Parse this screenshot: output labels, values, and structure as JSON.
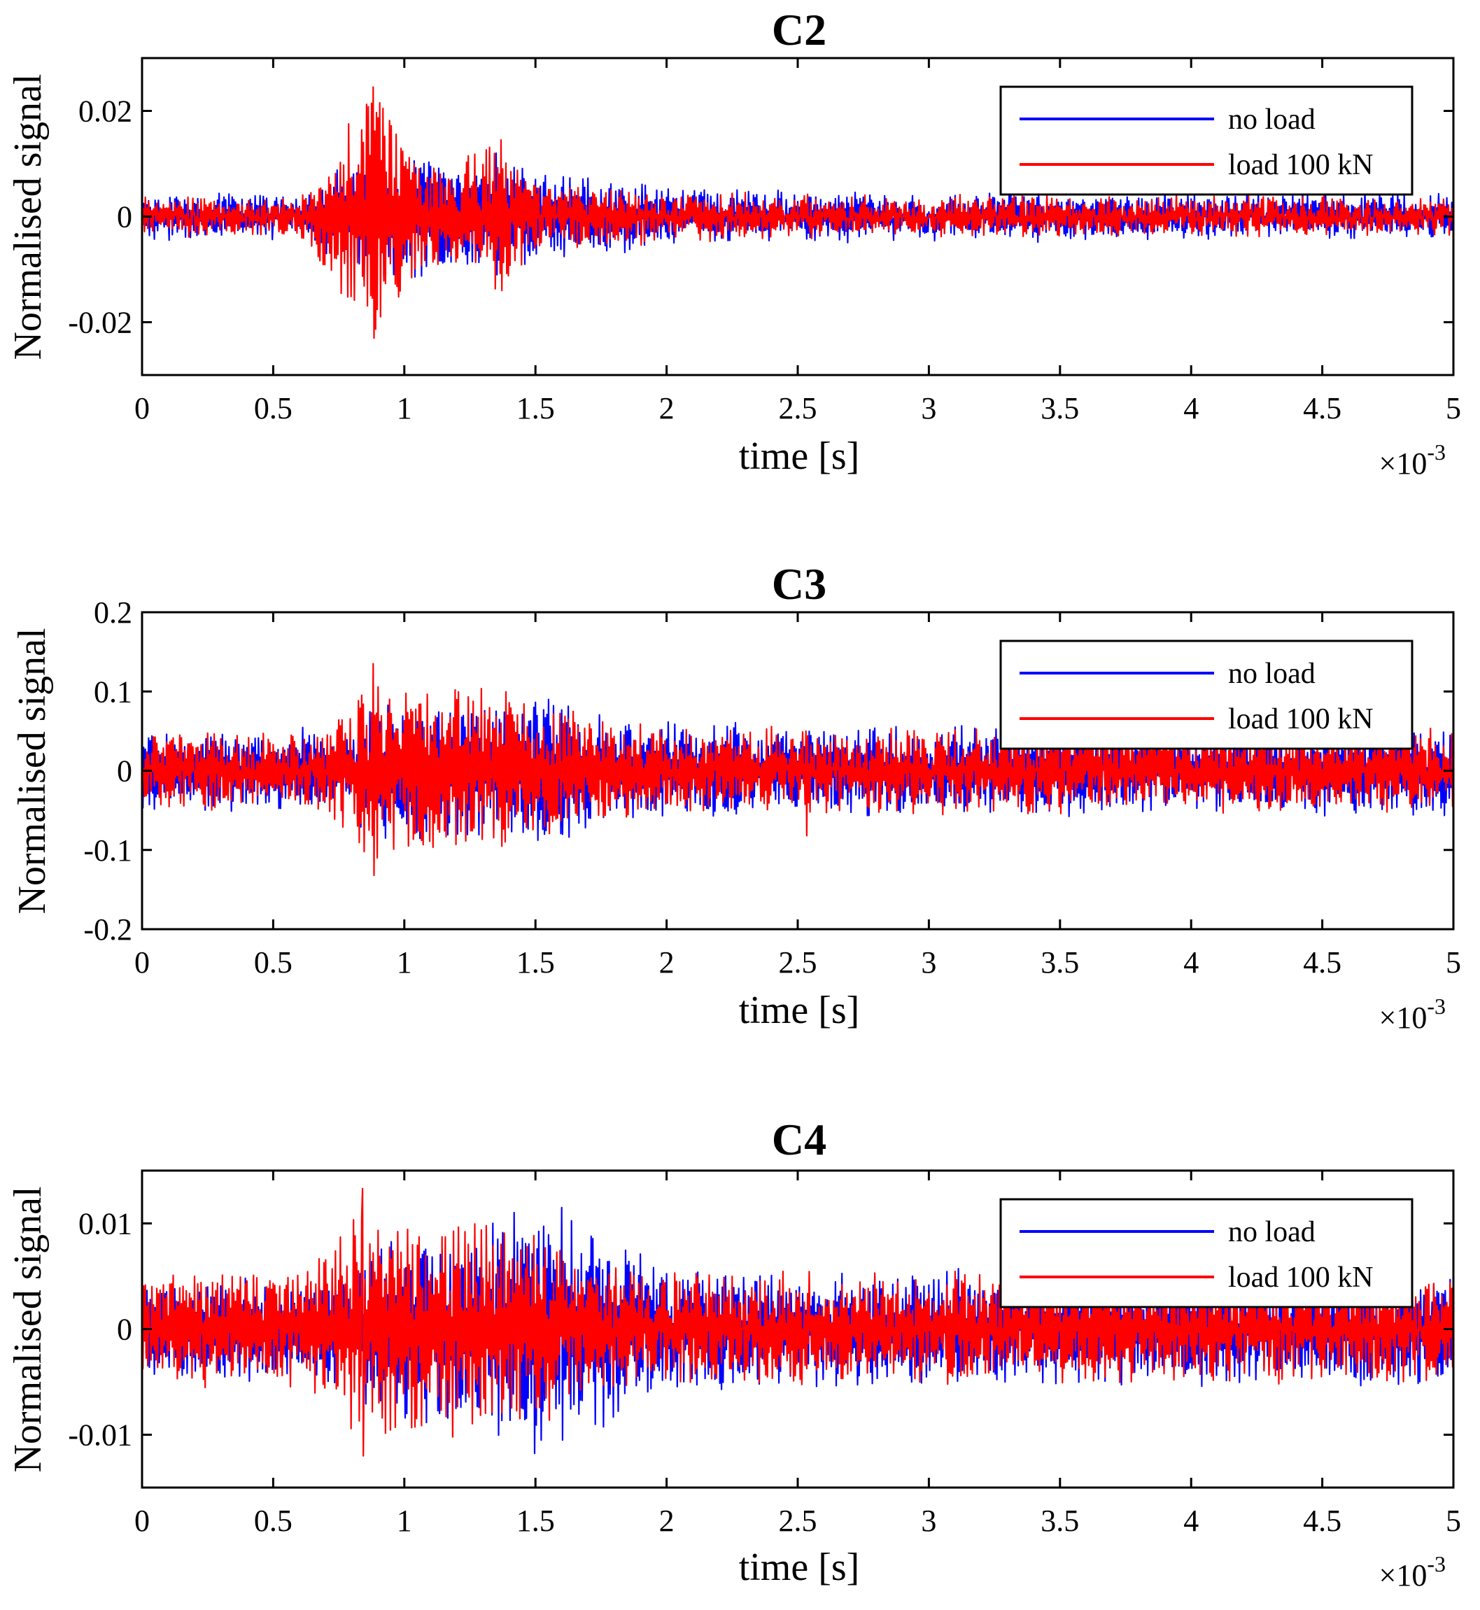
{
  "chart_data": [
    {
      "type": "line",
      "title": "C2",
      "xlabel": "time [s]",
      "ylabel": "Normalised signal",
      "x_exponent_label": "×10",
      "x_exponent_power": "-3",
      "xlim": [
        0,
        5
      ],
      "ylim": [
        -0.03,
        0.03
      ],
      "xticks": [
        0,
        0.5,
        1,
        1.5,
        2,
        2.5,
        3,
        3.5,
        4,
        4.5,
        5
      ],
      "xtick_labels": [
        "0",
        "0.5",
        "1",
        "1.5",
        "2",
        "2.5",
        "3",
        "3.5",
        "4",
        "4.5",
        "5"
      ],
      "yticks": [
        -0.02,
        0,
        0.02
      ],
      "ytick_labels": [
        "-0.02",
        "0",
        "0.02"
      ],
      "legend_position": "top-right",
      "series": [
        {
          "name": "no load",
          "color": "#0000ff",
          "noise": 0.0028,
          "envelope": [
            [
              0,
              0.0035
            ],
            [
              0.6,
              0.0035
            ],
            [
              0.75,
              0.009
            ],
            [
              0.85,
              0.013
            ],
            [
              1.0,
              0.012
            ],
            [
              1.2,
              0.009
            ],
            [
              1.4,
              0.009
            ],
            [
              1.6,
              0.007
            ],
            [
              2.0,
              0.005
            ],
            [
              2.5,
              0.004
            ],
            [
              3.0,
              0.0035
            ],
            [
              5.0,
              0.0035
            ]
          ],
          "peaks": [
            {
              "x": 1.35,
              "min": -0.011,
              "max": 0.012
            }
          ]
        },
        {
          "name": "load 100 kN",
          "color": "#ff0000",
          "noise": 0.0022,
          "envelope": [
            [
              0,
              0.003
            ],
            [
              0.6,
              0.003
            ],
            [
              0.7,
              0.01
            ],
            [
              0.87,
              0.024
            ],
            [
              0.95,
              0.02
            ],
            [
              1.0,
              0.015
            ],
            [
              1.15,
              0.008
            ],
            [
              1.35,
              0.014
            ],
            [
              1.5,
              0.006
            ],
            [
              2.0,
              0.004
            ],
            [
              2.5,
              0.0035
            ],
            [
              5.0,
              0.003
            ]
          ],
          "peaks": [
            {
              "x": 0.88,
              "min": -0.023,
              "max": 0.0245
            },
            {
              "x": 1.37,
              "min": -0.014,
              "max": 0.0145
            }
          ]
        }
      ]
    },
    {
      "type": "line",
      "title": "C3",
      "xlabel": "time [s]",
      "ylabel": "Normalised signal",
      "x_exponent_label": "×10",
      "x_exponent_power": "-3",
      "xlim": [
        0,
        5
      ],
      "ylim": [
        -0.2,
        0.2
      ],
      "xticks": [
        0,
        0.5,
        1,
        1.5,
        2,
        2.5,
        3,
        3.5,
        4,
        4.5,
        5
      ],
      "xtick_labels": [
        "0",
        "0.5",
        "1",
        "1.5",
        "2",
        "2.5",
        "3",
        "3.5",
        "4",
        "4.5",
        "5"
      ],
      "yticks": [
        -0.2,
        -0.1,
        0,
        0.1,
        0.2
      ],
      "ytick_labels": [
        "-0.2",
        "-0.1",
        "0",
        "0.1",
        "0.2"
      ],
      "legend_position": "top-right",
      "series": [
        {
          "name": "no load",
          "color": "#0000ff",
          "noise": 0.02,
          "envelope": [
            [
              0,
              0.045
            ],
            [
              0.7,
              0.045
            ],
            [
              0.9,
              0.08
            ],
            [
              1.2,
              0.08
            ],
            [
              1.5,
              0.09
            ],
            [
              1.8,
              0.06
            ],
            [
              2.5,
              0.05
            ],
            [
              5.0,
              0.05
            ]
          ],
          "peaks": [
            {
              "x": 1.55,
              "min": -0.07,
              "max": 0.09
            }
          ]
        },
        {
          "name": "load 100 kN",
          "color": "#ff0000",
          "noise": 0.018,
          "envelope": [
            [
              0,
              0.045
            ],
            [
              0.7,
              0.045
            ],
            [
              0.87,
              0.12
            ],
            [
              1.0,
              0.1
            ],
            [
              1.3,
              0.1
            ],
            [
              1.55,
              0.08
            ],
            [
              2.0,
              0.05
            ],
            [
              5.0,
              0.045
            ]
          ],
          "peaks": [
            {
              "x": 0.88,
              "min": -0.132,
              "max": 0.135
            },
            {
              "x": 2.53,
              "min": -0.082,
              "max": 0.05
            }
          ]
        }
      ]
    },
    {
      "type": "line",
      "title": "C4",
      "xlabel": "time [s]",
      "ylabel": "Normalised signal",
      "x_exponent_label": "×10",
      "x_exponent_power": "-3",
      "xlim": [
        0,
        5
      ],
      "ylim": [
        -0.015,
        0.015
      ],
      "xticks": [
        0,
        0.5,
        1,
        1.5,
        2,
        2.5,
        3,
        3.5,
        4,
        4.5,
        5
      ],
      "xtick_labels": [
        "0",
        "0.5",
        "1",
        "1.5",
        "2",
        "2.5",
        "3",
        "3.5",
        "4",
        "4.5",
        "5"
      ],
      "yticks": [
        -0.01,
        0,
        0.01
      ],
      "ytick_labels": [
        "-0.01",
        "0",
        "0.01"
      ],
      "legend_position": "top-right",
      "series": [
        {
          "name": "no load",
          "color": "#0000ff",
          "noise": 0.002,
          "envelope": [
            [
              0,
              0.004
            ],
            [
              0.7,
              0.004
            ],
            [
              0.9,
              0.008
            ],
            [
              1.2,
              0.009
            ],
            [
              1.5,
              0.011
            ],
            [
              1.75,
              0.009
            ],
            [
              2.0,
              0.005
            ],
            [
              5.0,
              0.0045
            ]
          ],
          "peaks": [
            {
              "x": 1.6,
              "min": -0.0105,
              "max": 0.0115
            }
          ]
        },
        {
          "name": "load 100 kN",
          "color": "#ff0000",
          "noise": 0.0018,
          "envelope": [
            [
              0,
              0.005
            ],
            [
              0.6,
              0.005
            ],
            [
              0.84,
              0.012
            ],
            [
              1.0,
              0.009
            ],
            [
              1.3,
              0.01
            ],
            [
              1.5,
              0.009
            ],
            [
              1.75,
              0.005
            ],
            [
              5.0,
              0.0045
            ]
          ],
          "peaks": [
            {
              "x": 0.84,
              "min": -0.012,
              "max": 0.0133
            }
          ]
        }
      ]
    }
  ]
}
